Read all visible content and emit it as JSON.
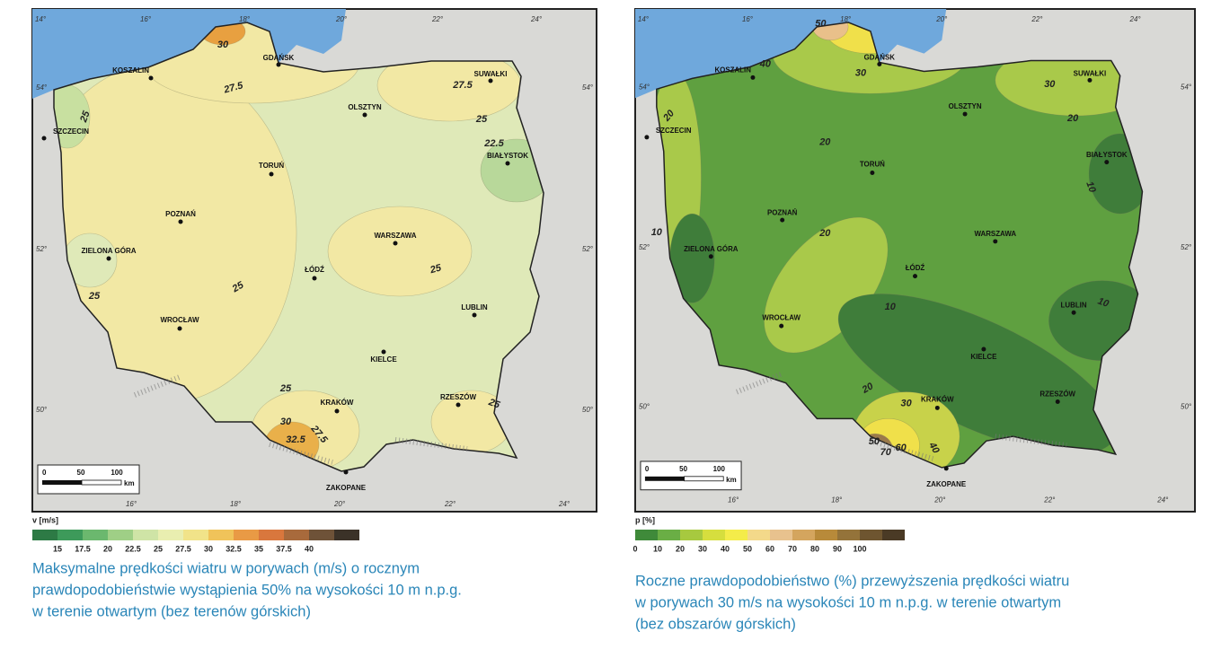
{
  "maps": [
    {
      "lon_labels_top": [
        "14°",
        "16°",
        "18°",
        "20°",
        "22°",
        "24°"
      ],
      "lat_labels": [
        "54°",
        "52°",
        "50°"
      ],
      "lon_labels_bottom": [
        "16°",
        "18°",
        "20°",
        "22°",
        "24°"
      ],
      "cities": [
        "KOSZALIN",
        "GDAŃSK",
        "SUWAŁKI",
        "OLSZTYN",
        "SZCZECIN",
        "BIAŁYSTOK",
        "TORUŃ",
        "POZNAŃ",
        "WARSZAWA",
        "ZIELONA GÓRA",
        "ŁÓDŹ",
        "LUBLIN",
        "WROCŁAW",
        "KIELCE",
        "KRAKÓW",
        "RZESZÓW",
        "ZAKOPANE"
      ],
      "contour_labels": [
        "30",
        "27.5",
        "27.5",
        "25",
        "25",
        "22.5",
        "25",
        "25",
        "25",
        "25",
        "30",
        "27.5",
        "32.5",
        "25"
      ],
      "scale_labels": [
        "0",
        "50",
        "100",
        "km"
      ],
      "legend_title": "v [m/s]",
      "legend_labels": [
        "15",
        "17.5",
        "20",
        "22.5",
        "25",
        "27.5",
        "30",
        "32.5",
        "35",
        "37.5",
        "40"
      ],
      "caption": [
        "Maksymalne prędkości wiatru w porywach (m/s) o rocznym",
        "prawdopodobieństwie wystąpienia 50% na wysokości 10 m n.p.g.",
        "w terenie otwartym (bez terenów górskich)"
      ]
    },
    {
      "lon_labels_top": [
        "14°",
        "16°",
        "18°",
        "20°",
        "22°",
        "24°"
      ],
      "lat_labels": [
        "54°",
        "52°",
        "50°"
      ],
      "lon_labels_bottom": [
        "16°",
        "18°",
        "20°",
        "22°",
        "24°"
      ],
      "cities": [
        "KOSZALIN",
        "GDAŃSK",
        "SUWAŁKI",
        "OLSZTYN",
        "SZCZECIN",
        "BIAŁYSTOK",
        "TORUŃ",
        "POZNAŃ",
        "WARSZAWA",
        "ZIELONA GÓRA",
        "ŁÓDŹ",
        "LUBLIN",
        "WROCŁAW",
        "KIELCE",
        "KRAKÓW",
        "RZESZÓW",
        "ZAKOPANE"
      ],
      "contour_labels": [
        "50",
        "40",
        "30",
        "30",
        "20",
        "20",
        "20",
        "10",
        "10",
        "20",
        "10",
        "10",
        "20",
        "30",
        "50",
        "70",
        "60",
        "40"
      ],
      "scale_labels": [
        "0",
        "50",
        "100",
        "km"
      ],
      "legend_title": "p [%]",
      "legend_labels": [
        "0",
        "10",
        "20",
        "30",
        "40",
        "50",
        "60",
        "70",
        "80",
        "90",
        "100"
      ],
      "caption": [
        "Roczne prawdopodobieństwo (%) przewyższenia prędkości wiatru",
        "w porywach 30 m/s na wysokości 10 m n.p.g. w terenie otwartym",
        "(bez obszarów górskich)"
      ]
    }
  ]
}
